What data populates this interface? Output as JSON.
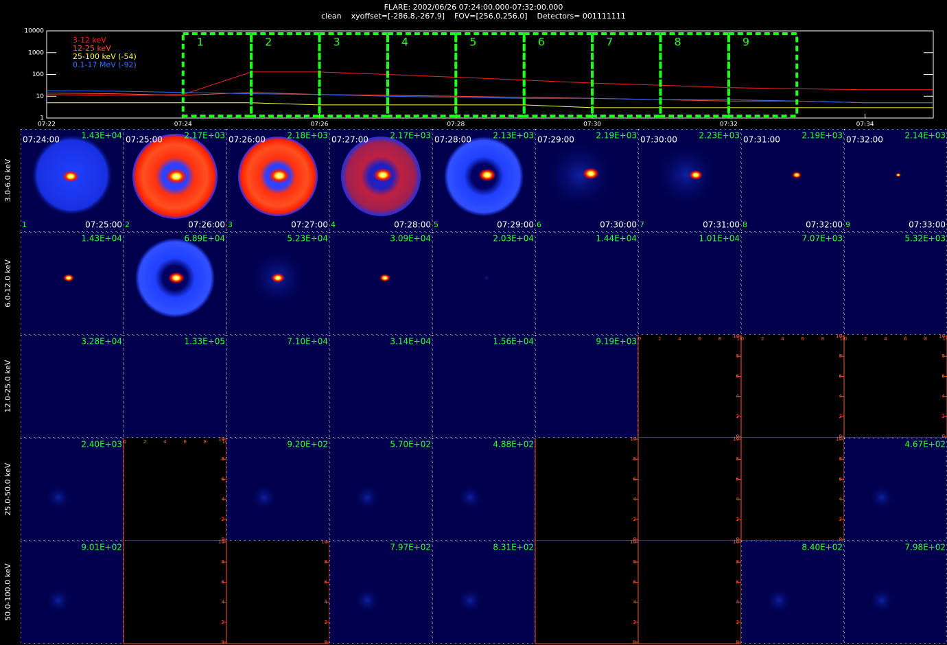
{
  "chart_data": {
    "type": "line",
    "title": "FLARE: 2002/06/26 07:24:00.000-07:32:00.000",
    "subtitle": "clean    xyoffset=[-286.8,-267.9]    FOV=[256.0,256.0]    Detectors= 001111111",
    "x": [
      "07:22",
      "07:23",
      "07:24",
      "07:25",
      "07:26",
      "07:27",
      "07:28",
      "07:29",
      "07:30",
      "07:31",
      "07:32",
      "07:33",
      "07:34",
      "07:35"
    ],
    "series": [
      {
        "name": "3-12 keV",
        "color": "#ff2020",
        "values": [
          12,
          11,
          12,
          130,
          130,
          100,
          75,
          55,
          40,
          32,
          25,
          22,
          20,
          20
        ]
      },
      {
        "name": "12-25 keV",
        "color": "#ff5030",
        "values": [
          14,
          13,
          11,
          15,
          12,
          11,
          10,
          9,
          8,
          7,
          6,
          6,
          5,
          5
        ]
      },
      {
        "name": "25-100 keV (-54)",
        "color": "#ffff40",
        "values": [
          5,
          5,
          5,
          5,
          4,
          4,
          4,
          4,
          3,
          3,
          3,
          3,
          3,
          3
        ]
      },
      {
        "name": "0.1-17 MeV (-92)",
        "color": "#3070ff",
        "values": [
          18,
          17,
          15,
          13,
          12,
          10,
          9,
          8,
          8,
          7,
          7,
          6,
          5,
          5
        ]
      }
    ],
    "xlim": [
      "07:22",
      "07:35"
    ],
    "xticks": [
      "07:22",
      "07:24",
      "07:26",
      "07:28",
      "07:30",
      "07:32",
      "07:34"
    ],
    "ylim": [
      1,
      10000
    ],
    "yticks": [
      1,
      10,
      100,
      1000,
      10000
    ],
    "log_y": true,
    "interval_color": "#20ff20",
    "intervals": [
      {
        "label": "1",
        "start": "07:24",
        "end": "07:25"
      },
      {
        "label": "2",
        "start": "07:25",
        "end": "07:26"
      },
      {
        "label": "3",
        "start": "07:26",
        "end": "07:27"
      },
      {
        "label": "4",
        "start": "07:27",
        "end": "07:28"
      },
      {
        "label": "5",
        "start": "07:28",
        "end": "07:29"
      },
      {
        "label": "6",
        "start": "07:29",
        "end": "07:30"
      },
      {
        "label": "7",
        "start": "07:30",
        "end": "07:31"
      },
      {
        "label": "8",
        "start": "07:31",
        "end": "07:32"
      },
      {
        "label": "9",
        "start": "07:32",
        "end": "07:33"
      }
    ]
  },
  "image_grid": {
    "energy_bands": [
      "3.0-6.0 keV",
      "6.0-12.0 keV",
      "12.0-25.0 keV",
      "25.0-50.0 keV",
      "50.0-100.0 keV"
    ],
    "start_times": [
      "07:24:00",
      "07:25:00",
      "07:26:00",
      "07:27:00",
      "07:28:00",
      "07:29:00",
      "07:30:00",
      "07:31:00",
      "07:32:00"
    ],
    "end_times": [
      "07:25:00",
      "07:26:00",
      "07:27:00",
      "07:28:00",
      "07:29:00",
      "07:30:00",
      "07:31:00",
      "07:32:00",
      "07:33:00"
    ],
    "max_values": [
      [
        "1.43E+04",
        "2.17E+03",
        "2.18E+03",
        "2.17E+03",
        "2.13E+03",
        "2.19E+03",
        "2.23E+03",
        "2.19E+03",
        "2.14E+03"
      ],
      [
        "1.43E+04",
        "6.89E+04",
        "5.23E+04",
        "3.09E+04",
        "2.03E+04",
        "1.44E+04",
        "1.01E+04",
        "7.07E+03",
        "5.32E+03"
      ],
      [
        "3.28E+04",
        "1.33E+05",
        "7.10E+04",
        "3.14E+04",
        "1.56E+04",
        "9.19E+03",
        null,
        null,
        null
      ],
      [
        "2.40E+03",
        null,
        "9.20E+02",
        "5.70E+02",
        "4.88E+02",
        null,
        null,
        null,
        "4.67E+02"
      ],
      [
        "9.01E+02",
        null,
        null,
        "7.97E+02",
        "8.31E+02",
        null,
        null,
        "8.40E+02",
        "7.98E+02"
      ]
    ],
    "empty_axis_ticks": [
      0,
      2,
      4,
      6,
      8,
      10
    ]
  }
}
